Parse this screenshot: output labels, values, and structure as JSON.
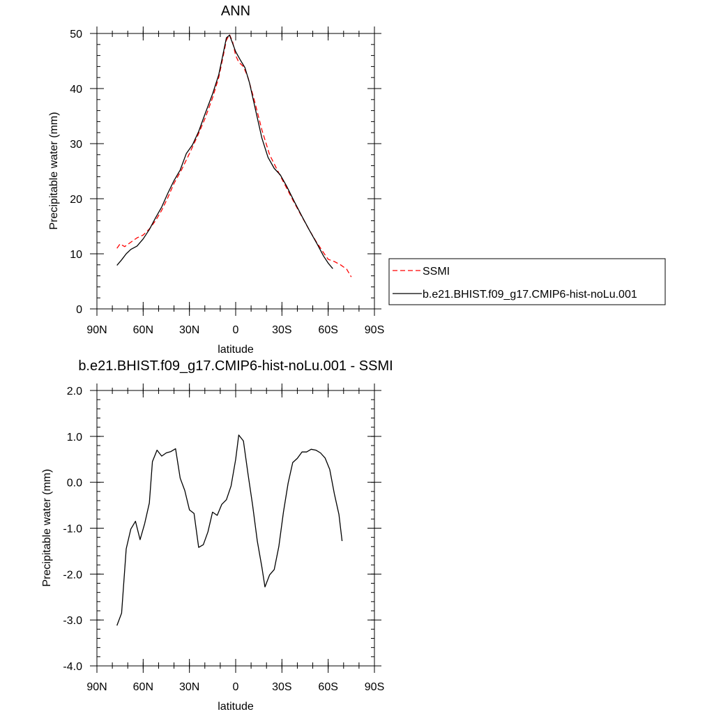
{
  "colors": {
    "ssmi": "#ff0000",
    "model": "#000000",
    "axes": "#000000",
    "background": "#ffffff"
  },
  "chart_data": [
    {
      "type": "line",
      "title": "ANN",
      "xlabel": "latitude",
      "ylabel": "Precipitable water (mm)",
      "xlim": [
        90,
        -90
      ],
      "ylim": [
        0,
        50
      ],
      "x_ticks": [
        {
          "value": 90,
          "label": "90N"
        },
        {
          "value": 60,
          "label": "60N"
        },
        {
          "value": 30,
          "label": "30N"
        },
        {
          "value": 0,
          "label": "0"
        },
        {
          "value": -30,
          "label": "30S"
        },
        {
          "value": -60,
          "label": "60S"
        },
        {
          "value": -90,
          "label": "90S"
        }
      ],
      "y_ticks": [
        {
          "value": 0,
          "label": "0"
        },
        {
          "value": 10,
          "label": "10"
        },
        {
          "value": 20,
          "label": "20"
        },
        {
          "value": 30,
          "label": "30"
        },
        {
          "value": 40,
          "label": "40"
        },
        {
          "value": 50,
          "label": "50"
        }
      ],
      "legend_position": "right",
      "series": [
        {
          "name": "SSMI",
          "style": "dashed",
          "color": "#ff0000",
          "points": [
            [
              77,
              11.0
            ],
            [
              75,
              11.8
            ],
            [
              72,
              11.3
            ],
            [
              68,
              12.1
            ],
            [
              64,
              12.9
            ],
            [
              60,
              13.4
            ],
            [
              56,
              14.5
            ],
            [
              52,
              16.0
            ],
            [
              48,
              17.9
            ],
            [
              44,
              20.2
            ],
            [
              40,
              22.8
            ],
            [
              35,
              25.3
            ],
            [
              30,
              28.2
            ],
            [
              25,
              31.2
            ],
            [
              20,
              34.5
            ],
            [
              15,
              38.3
            ],
            [
              11,
              42.0
            ],
            [
              8,
              46.0
            ],
            [
              6,
              48.8
            ],
            [
              4,
              49.8
            ],
            [
              2,
              48.5
            ],
            [
              0,
              46.0
            ],
            [
              -2,
              44.8
            ],
            [
              -5,
              44.0
            ],
            [
              -8,
              42.0
            ],
            [
              -12,
              38.0
            ],
            [
              -17,
              32.5
            ],
            [
              -22,
              28.0
            ],
            [
              -27,
              25.2
            ],
            [
              -32,
              22.5
            ],
            [
              -37,
              19.8
            ],
            [
              -42,
              17.2
            ],
            [
              -47,
              14.7
            ],
            [
              -52,
              12.3
            ],
            [
              -57,
              10.2
            ],
            [
              -60,
              9.0
            ],
            [
              -64,
              8.6
            ],
            [
              -68,
              8.0
            ],
            [
              -72,
              7.2
            ],
            [
              -75,
              5.8
            ]
          ]
        },
        {
          "name": "b.e21.BHIST.f09_g17.CMIP6-hist-noLu.001",
          "style": "solid",
          "color": "#000000",
          "points": [
            [
              77,
              7.9
            ],
            [
              74,
              8.9
            ],
            [
              71,
              10.0
            ],
            [
              68,
              10.8
            ],
            [
              64,
              11.4
            ],
            [
              60,
              12.7
            ],
            [
              56,
              14.4
            ],
            [
              52,
              16.5
            ],
            [
              48,
              18.5
            ],
            [
              44,
              21.0
            ],
            [
              40,
              23.3
            ],
            [
              36,
              25.2
            ],
            [
              32,
              28.2
            ],
            [
              28,
              29.8
            ],
            [
              24,
              32.2
            ],
            [
              20,
              35.3
            ],
            [
              15,
              39.0
            ],
            [
              11,
              42.5
            ],
            [
              8,
              46.5
            ],
            [
              6,
              49.2
            ],
            [
              4,
              49.7
            ],
            [
              2,
              48.2
            ],
            [
              0,
              46.7
            ],
            [
              -3,
              45.2
            ],
            [
              -6,
              43.8
            ],
            [
              -9,
              41.0
            ],
            [
              -13,
              36.0
            ],
            [
              -17,
              31.0
            ],
            [
              -21,
              27.5
            ],
            [
              -25,
              25.5
            ],
            [
              -29,
              24.3
            ],
            [
              -33,
              22.3
            ],
            [
              -38,
              19.5
            ],
            [
              -43,
              16.8
            ],
            [
              -48,
              14.2
            ],
            [
              -53,
              11.7
            ],
            [
              -57,
              9.6
            ],
            [
              -60,
              8.3
            ],
            [
              -63,
              7.3
            ]
          ]
        }
      ]
    },
    {
      "type": "line",
      "title": "b.e21.BHIST.f09_g17.CMIP6-hist-noLu.001 - SSMI",
      "xlabel": "latitude",
      "ylabel": "Precipitable water (mm)",
      "xlim": [
        90,
        -90
      ],
      "ylim": [
        -4.0,
        2.0
      ],
      "x_ticks": [
        {
          "value": 90,
          "label": "90N"
        },
        {
          "value": 60,
          "label": "60N"
        },
        {
          "value": 30,
          "label": "30N"
        },
        {
          "value": 0,
          "label": "0"
        },
        {
          "value": -30,
          "label": "30S"
        },
        {
          "value": -60,
          "label": "60S"
        },
        {
          "value": -90,
          "label": "90S"
        }
      ],
      "y_ticks": [
        {
          "value": 2.0,
          "label": "2.0"
        },
        {
          "value": 1.0,
          "label": "1.0"
        },
        {
          "value": 0.0,
          "label": "0.0"
        },
        {
          "value": -1.0,
          "label": "-1.0"
        },
        {
          "value": -2.0,
          "label": "-2.0"
        },
        {
          "value": -3.0,
          "label": "-3.0"
        },
        {
          "value": -4.0,
          "label": "-4.0"
        }
      ],
      "series": [
        {
          "style": "solid",
          "color": "#000000",
          "points": [
            [
              77,
              -3.12
            ],
            [
              74,
              -2.85
            ],
            [
              71,
              -1.45
            ],
            [
              68,
              -1.02
            ],
            [
              65,
              -0.85
            ],
            [
              62,
              -1.25
            ],
            [
              59,
              -0.9
            ],
            [
              56,
              -0.45
            ],
            [
              54,
              0.45
            ],
            [
              51,
              0.7
            ],
            [
              48,
              0.57
            ],
            [
              45,
              0.64
            ],
            [
              42,
              0.67
            ],
            [
              39,
              0.73
            ],
            [
              36,
              0.09
            ],
            [
              33,
              -0.18
            ],
            [
              30,
              -0.6
            ],
            [
              27,
              -0.68
            ],
            [
              24,
              -1.42
            ],
            [
              21,
              -1.36
            ],
            [
              18,
              -1.08
            ],
            [
              15,
              -0.65
            ],
            [
              12,
              -0.72
            ],
            [
              9,
              -0.48
            ],
            [
              6,
              -0.38
            ],
            [
              3,
              -0.08
            ],
            [
              0,
              0.5
            ],
            [
              -2,
              1.03
            ],
            [
              -5,
              0.9
            ],
            [
              -8,
              0.18
            ],
            [
              -11,
              -0.5
            ],
            [
              -14,
              -1.28
            ],
            [
              -17,
              -1.85
            ],
            [
              -19,
              -2.28
            ],
            [
              -22,
              -2.02
            ],
            [
              -25,
              -1.9
            ],
            [
              -28,
              -1.4
            ],
            [
              -31,
              -0.65
            ],
            [
              -34,
              -0.02
            ],
            [
              -37,
              0.43
            ],
            [
              -40,
              0.52
            ],
            [
              -43,
              0.66
            ],
            [
              -46,
              0.66
            ],
            [
              -49,
              0.72
            ],
            [
              -52,
              0.7
            ],
            [
              -55,
              0.64
            ],
            [
              -58,
              0.53
            ],
            [
              -61,
              0.28
            ],
            [
              -64,
              -0.25
            ],
            [
              -67,
              -0.7
            ],
            [
              -69,
              -1.28
            ]
          ]
        }
      ]
    }
  ]
}
